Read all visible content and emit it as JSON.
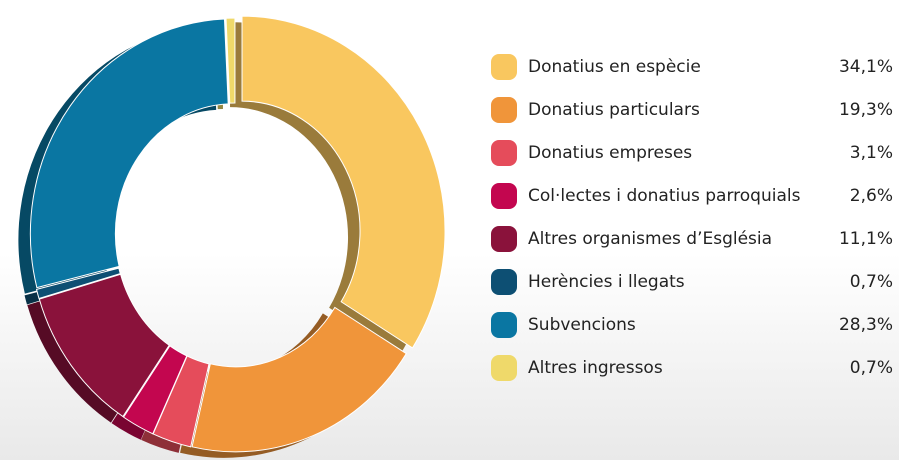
{
  "chart_data": {
    "type": "pie",
    "donut": true,
    "categories": [
      "Donatius en espècie",
      "Donatius particulars",
      "Donatius empreses",
      "Col·lectes i donatius parroquials",
      "Altres organismes d’Església",
      "Herències i llegats",
      "Subvencions",
      "Altres ingressos"
    ],
    "values": [
      34.1,
      19.3,
      3.1,
      2.6,
      11.1,
      0.7,
      28.3,
      0.7
    ],
    "value_labels": [
      "34,1%",
      "19,3%",
      "3,1%",
      "2,6%",
      "11,1%",
      "0,7%",
      "28,3%",
      "0,7%"
    ],
    "colors": [
      "#f9c75f",
      "#f0953a",
      "#e54c5b",
      "#c3064f",
      "#8a123b",
      "#0d4f73",
      "#0a76a2",
      "#efd96a"
    ],
    "legend": "right"
  }
}
